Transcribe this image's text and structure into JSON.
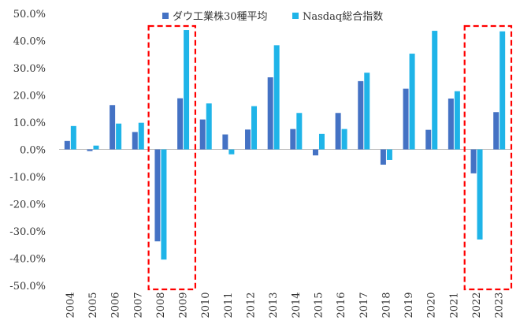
{
  "chart_data": {
    "type": "bar",
    "categories": [
      "2004",
      "2005",
      "2006",
      "2007",
      "2008",
      "2009",
      "2010",
      "2011",
      "2012",
      "2013",
      "2014",
      "2015",
      "2016",
      "2017",
      "2018",
      "2019",
      "2020",
      "2021",
      "2022",
      "2023"
    ],
    "series": [
      {
        "name": "ダウ工業株30種平均",
        "color": "#4472C4",
        "values": [
          3.1,
          -0.6,
          16.3,
          6.4,
          -33.8,
          18.8,
          11.0,
          5.5,
          7.3,
          26.5,
          7.5,
          -2.2,
          13.4,
          25.1,
          -5.6,
          22.3,
          7.2,
          18.7,
          -8.8,
          13.7
        ]
      },
      {
        "name": "Nasdaq総合指数",
        "color": "#1FB4E8",
        "values": [
          8.6,
          1.4,
          9.5,
          9.8,
          -40.5,
          43.9,
          16.9,
          -1.8,
          15.9,
          38.3,
          13.4,
          5.7,
          7.5,
          28.2,
          -3.9,
          35.2,
          43.6,
          21.4,
          -33.1,
          43.4
        ]
      }
    ],
    "y_ticks": [
      "50.0%",
      "40.0%",
      "30.0%",
      "20.0%",
      "10.0%",
      "0.0%",
      "-10.0%",
      "-20.0%",
      "-30.0%",
      "-40.0%",
      "-50.0%"
    ],
    "ylim": [
      -50,
      50
    ],
    "highlight_years": [
      [
        "2008",
        "2009"
      ],
      [
        "2022",
        "2023"
      ]
    ],
    "highlight_color": "#FF0000",
    "grid": false,
    "legend_position": "top"
  }
}
